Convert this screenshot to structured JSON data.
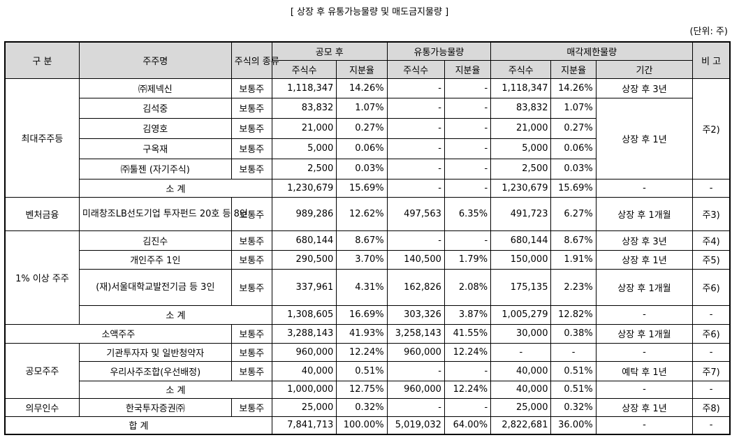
{
  "title": "[ 상장 후 유통가능물량 및 매도금지물량 ]",
  "unit": "(단위: 주)",
  "headers": {
    "category": "구 분",
    "holder": "주주명",
    "stock_type": "주식의 종류",
    "after_ipo": "공모 후",
    "tradable": "유통가능물량",
    "restricted": "매각제한물량",
    "note": "비 고",
    "shares": "주식수",
    "ratio": "지분율",
    "period": "기간"
  },
  "groups": {
    "largest": "최대주주등",
    "venture": "벤처금융",
    "one_pct": "1% 이상 주주",
    "minority": "소액주주",
    "offering": "공모주주",
    "underwriter": "의무인수"
  },
  "rows": [
    {
      "holder": "㈜제넥신",
      "type": "보통주",
      "s1": "1,118,347",
      "p1": "14.26%",
      "s2": "-",
      "p2": "-",
      "s3": "1,118,347",
      "p3": "14.26%",
      "period": "상장 후 3년"
    },
    {
      "holder": "김석중",
      "type": "보통주",
      "s1": "83,832",
      "p1": "1.07%",
      "s2": "-",
      "p2": "-",
      "s3": "83,832",
      "p3": "1.07%"
    },
    {
      "holder": "김영호",
      "type": "보통주",
      "s1": "21,000",
      "p1": "0.27%",
      "s2": "-",
      "p2": "-",
      "s3": "21,000",
      "p3": "0.27%"
    },
    {
      "holder": "구옥재",
      "type": "보통주",
      "s1": "5,000",
      "p1": "0.06%",
      "s2": "-",
      "p2": "-",
      "s3": "5,000",
      "p3": "0.06%"
    },
    {
      "holder": "㈜툴젠 (자기주식)",
      "type": "보통주",
      "s1": "2,500",
      "p1": "0.03%",
      "s2": "-",
      "p2": "-",
      "s3": "2,500",
      "p3": "0.03%"
    },
    {
      "holder": "소 계",
      "s1": "1,230,679",
      "p1": "15.69%",
      "s2": "-",
      "p2": "-",
      "s3": "1,230,679",
      "p3": "15.69%",
      "period": "-",
      "note": "-"
    },
    {
      "holder": "미래창조LB선도기업 투자펀드 20호 등 8인",
      "type": "보통주",
      "s1": "989,286",
      "p1": "12.62%",
      "s2": "497,563",
      "p2": "6.35%",
      "s3": "491,723",
      "p3": "6.27%",
      "period": "상장 후 1개월",
      "note": "주3)"
    },
    {
      "holder": "김진수",
      "type": "보통주",
      "s1": "680,144",
      "p1": "8.67%",
      "s2": "-",
      "p2": "-",
      "s3": "680,144",
      "p3": "8.67%",
      "period": "상장 후 3년",
      "note": "주4)"
    },
    {
      "holder": "개인주주 1인",
      "type": "보통주",
      "s1": "290,500",
      "p1": "3.70%",
      "s2": "140,500",
      "p2": "1.79%",
      "s3": "150,000",
      "p3": "1.91%",
      "period": "상장 후 1년",
      "note": "주5)"
    },
    {
      "holder": "(재)서울대학교발전기금 등 3인",
      "type": "보통주",
      "s1": "337,961",
      "p1": "4.31%",
      "s2": "162,826",
      "p2": "2.08%",
      "s3": "175,135",
      "p3": "2.23%",
      "period": "상장 후 1개월",
      "note": "주6)"
    },
    {
      "holder": "소 계",
      "s1": "1,308,605",
      "p1": "16.69%",
      "s2": "303,326",
      "p2": "3.87%",
      "s3": "1,005,279",
      "p3": "12.82%",
      "period": "-",
      "note": "-"
    },
    {
      "holder": "소액주주",
      "type": "보통주",
      "s1": "3,288,143",
      "p1": "41.93%",
      "s2": "3,258,143",
      "p2": "41.55%",
      "s3": "30,000",
      "p3": "0.38%",
      "period": "상장 후 1개월",
      "note": "주6)"
    },
    {
      "holder": "기관투자자 및 일반청약자",
      "type": "보통주",
      "s1": "960,000",
      "p1": "12.24%",
      "s2": "960,000",
      "p2": "12.24%",
      "s3": "-",
      "p3": "-",
      "period": "-",
      "note": "-"
    },
    {
      "holder": "우리사주조합(우선배정)",
      "type": "보통주",
      "s1": "40,000",
      "p1": "0.51%",
      "s2": "-",
      "p2": "-",
      "s3": "40,000",
      "p3": "0.51%",
      "period": "예탁 후 1년",
      "note": "주7)"
    },
    {
      "holder": "소 계",
      "s1": "1,000,000",
      "p1": "12.75%",
      "s2": "960,000",
      "p2": "12.24%",
      "s3": "40,000",
      "p3": "0.51%",
      "period": "-",
      "note": "-"
    },
    {
      "holder": "한국투자증권㈜",
      "type": "보통주",
      "s1": "25,000",
      "p1": "0.32%",
      "s2": "-",
      "p2": "-",
      "s3": "25,000",
      "p3": "0.32%",
      "period": "상장 후 1년",
      "note": "주8)"
    },
    {
      "holder": "합 계",
      "s1": "7,841,713",
      "p1": "100.00%",
      "s2": "5,019,032",
      "p2": "64.00%",
      "s3": "2,822,681",
      "p3": "36.00%",
      "period": "-",
      "note": "-"
    }
  ],
  "shared": {
    "largest_period_2_5": "상장 후 1년",
    "largest_note": "주2)"
  }
}
